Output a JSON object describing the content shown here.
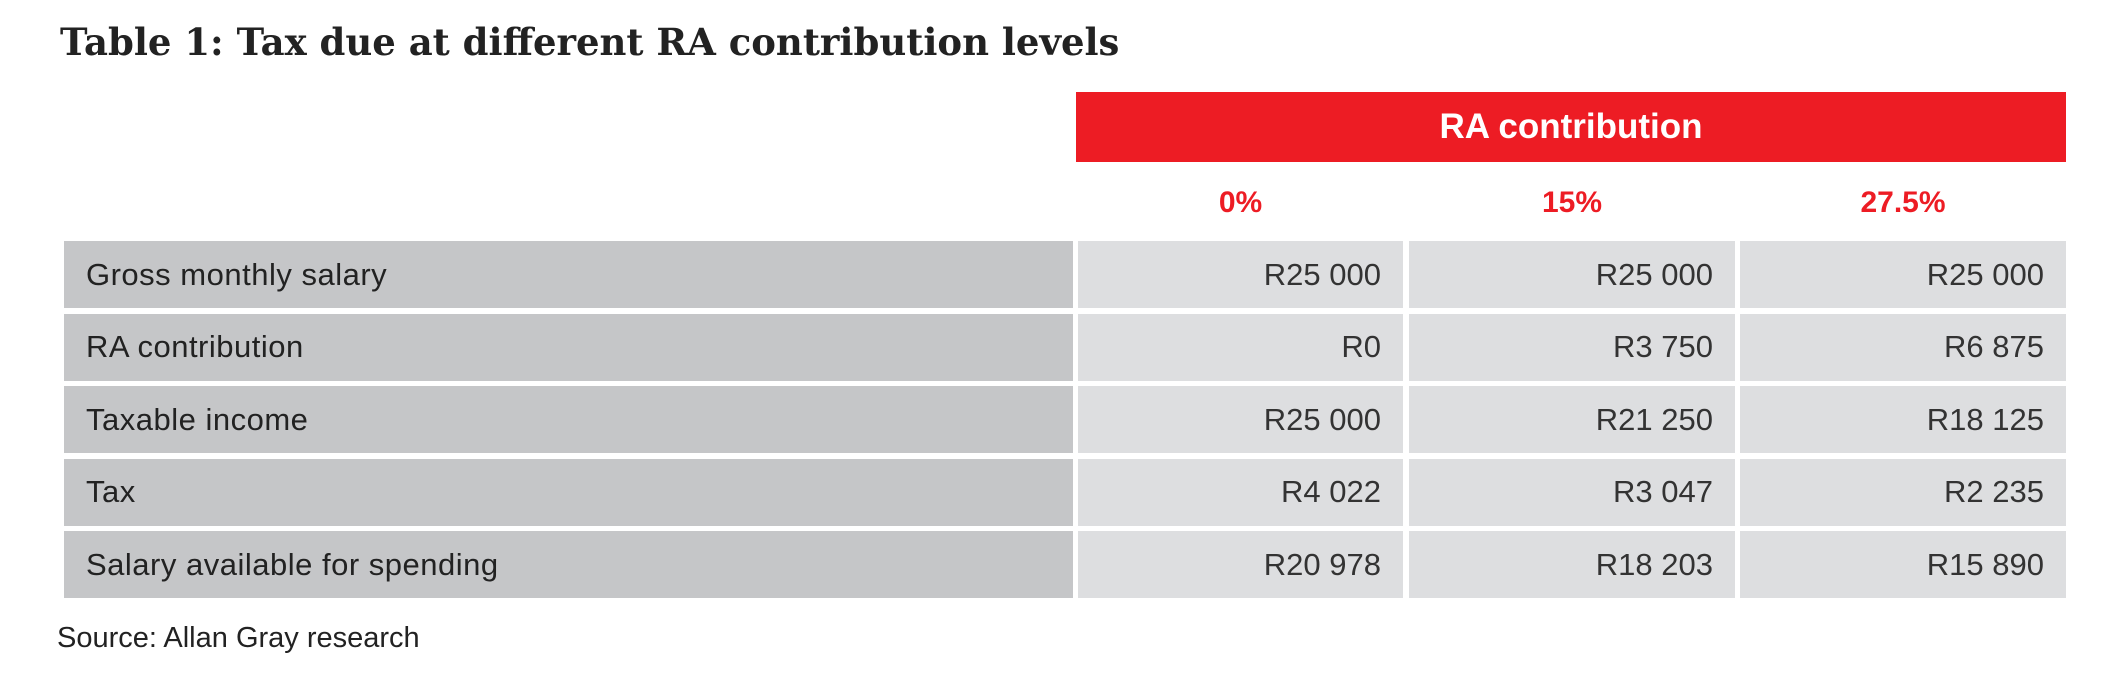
{
  "title": "Table 1: Tax due at different RA contribution levels",
  "table": {
    "group_header": "RA contribution",
    "columns": [
      "0%",
      "15%",
      "27.5%"
    ],
    "rows": [
      {
        "label": "Gross monthly salary",
        "values": [
          "R25 000",
          "R25 000",
          "R25 000"
        ]
      },
      {
        "label": "RA contribution",
        "values": [
          "R0",
          "R3 750",
          "R6 875"
        ]
      },
      {
        "label": "Taxable income",
        "values": [
          "R25 000",
          "R21 250",
          "R18 125"
        ]
      },
      {
        "label": "Tax",
        "values": [
          "R4 022",
          "R3 047",
          "R2 235"
        ]
      },
      {
        "label": "Salary available for spending",
        "values": [
          "R20 978",
          "R18 203",
          "R15 890"
        ]
      }
    ]
  },
  "source": "Source: Allan Gray research"
}
